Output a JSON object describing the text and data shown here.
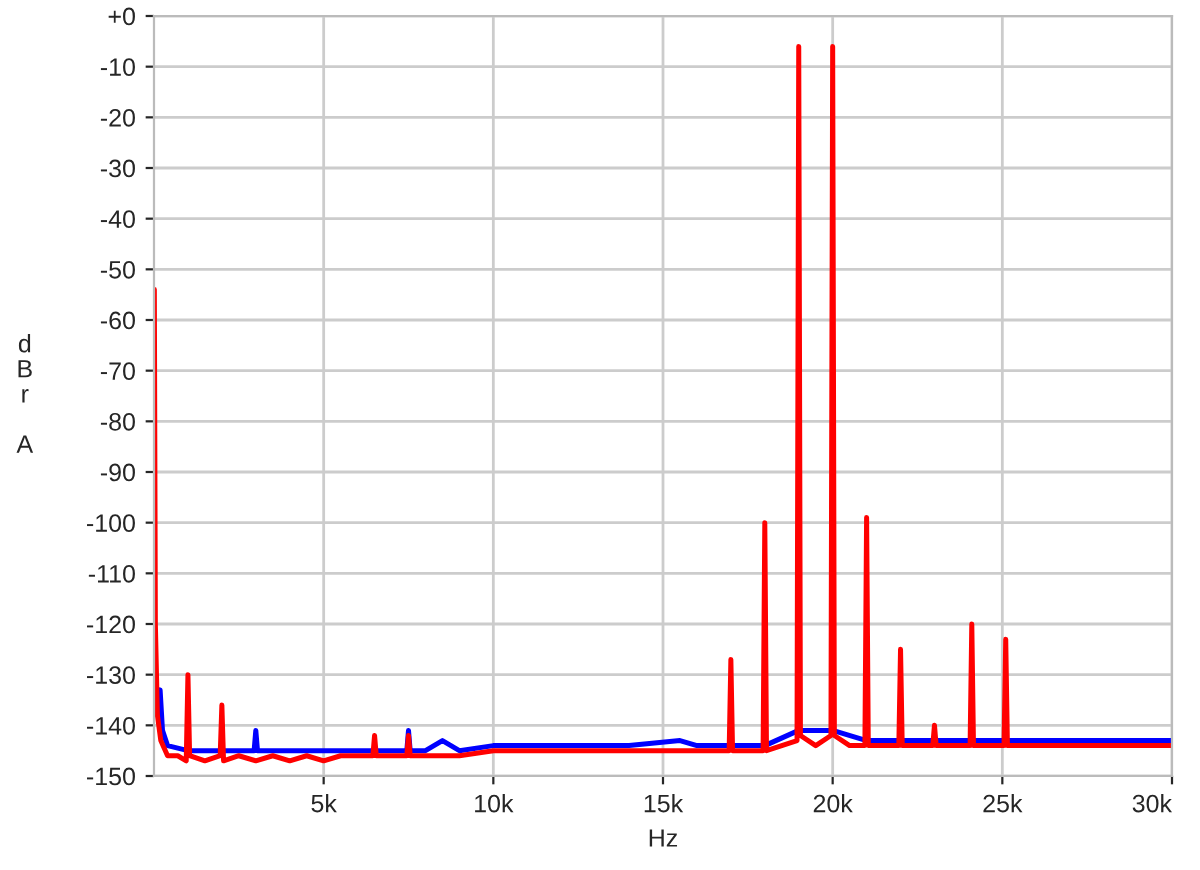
{
  "chart_data": {
    "type": "line",
    "xlabel": "Hz",
    "ylabel": "dBr A",
    "xlim": [
      0,
      30000
    ],
    "xticks": [
      {
        "value": 5000,
        "label": "5k"
      },
      {
        "value": 10000,
        "label": "10k"
      },
      {
        "value": 15000,
        "label": "15k"
      },
      {
        "value": 20000,
        "label": "20k"
      },
      {
        "value": 25000,
        "label": "25k"
      },
      {
        "value": 30000,
        "label": "30k"
      }
    ],
    "ylim": [
      -150,
      0
    ],
    "yticks": [
      {
        "value": 0,
        "label": "+0"
      },
      -10,
      -20,
      -30,
      -40,
      -50,
      -60,
      -70,
      -80,
      -90,
      -100,
      -110,
      -120,
      -130,
      -140,
      -150
    ],
    "grid": true,
    "marker": "none",
    "line_style": "solid",
    "series": [
      {
        "color": "#0000ff",
        "x": [
          100,
          180,
          250,
          400,
          1000,
          2000,
          2950,
          3000,
          3050,
          4000,
          5000,
          6000,
          7000,
          7450,
          7500,
          7550,
          8000,
          8500,
          9000,
          10000,
          12000,
          14000,
          15500,
          16000,
          18000,
          19000,
          20000,
          21000,
          22000,
          24000,
          26000,
          28000,
          30000
        ],
        "values": [
          -137,
          -133,
          -141,
          -144,
          -145,
          -145,
          -145,
          -141,
          -145,
          -145,
          -145,
          -145,
          -145,
          -145,
          -141,
          -145,
          -145,
          -143,
          -145,
          -144,
          -144,
          -144,
          -143,
          -144,
          -144,
          -141,
          -141,
          -143,
          -143,
          -143,
          -143,
          -143,
          -143
        ]
      },
      {
        "color": "#ff0000",
        "x": [
          10,
          40,
          100,
          200,
          400,
          700,
          950,
          1000,
          1050,
          1500,
          1950,
          2000,
          2050,
          2500,
          3000,
          3500,
          4000,
          4500,
          5000,
          5500,
          6000,
          6450,
          6500,
          6550,
          7000,
          7450,
          7500,
          7550,
          8000,
          9000,
          10000,
          11000,
          12000,
          13000,
          14000,
          15000,
          16000,
          16950,
          17000,
          17050,
          17500,
          17950,
          18000,
          18050,
          18500,
          18950,
          19000,
          19050,
          19500,
          19950,
          20000,
          20050,
          20500,
          20950,
          21000,
          21050,
          21500,
          21950,
          22000,
          22050,
          22500,
          22950,
          23000,
          23050,
          23500,
          24050,
          24100,
          24150,
          24600,
          25050,
          25100,
          25150,
          26000,
          27000,
          28000,
          29000,
          30000
        ],
        "values": [
          -54,
          -120,
          -138,
          -143,
          -146,
          -146,
          -147,
          -130,
          -146,
          -147,
          -146,
          -136,
          -147,
          -146,
          -147,
          -146,
          -147,
          -146,
          -147,
          -146,
          -146,
          -146,
          -142,
          -146,
          -146,
          -146,
          -142,
          -146,
          -146,
          -146,
          -145,
          -145,
          -145,
          -145,
          -145,
          -145,
          -145,
          -145,
          -127,
          -145,
          -145,
          -145,
          -100,
          -145,
          -144,
          -143,
          -6,
          -142,
          -144,
          -142,
          -6,
          -142,
          -144,
          -144,
          -99,
          -144,
          -144,
          -144,
          -125,
          -144,
          -144,
          -144,
          -140,
          -144,
          -144,
          -144,
          -120,
          -144,
          -144,
          -144,
          -123,
          -144,
          -144,
          -144,
          -144,
          -144,
          -144
        ]
      }
    ]
  }
}
